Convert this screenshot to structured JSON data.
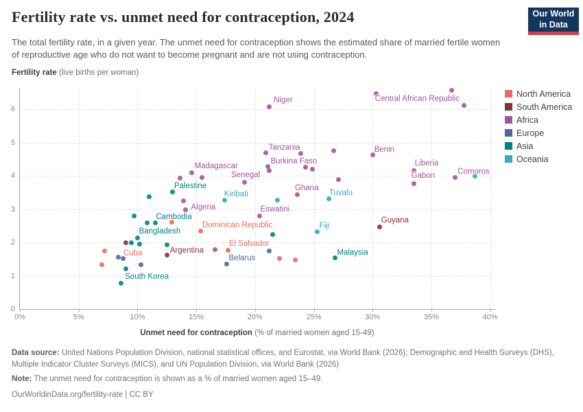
{
  "header": {
    "title": "Fertility rate vs. unmet need for contraception, 2024",
    "subtitle": "The total fertility rate, in a given year. The unmet need for contraception shows the estimated share of married fertile women of reproductive age who do not want to become pregnant and are not using contraception.",
    "logo_line1": "Our World",
    "logo_line2": "in Data",
    "logo_bg": "#15365c",
    "logo_red": "#cf3e4a"
  },
  "chart_data": {
    "type": "scatter",
    "title": "Fertility rate vs. unmet need for contraception, 2024",
    "xlabel_bold": "Unmet need for contraception",
    "xlabel_rest": " (% of married women aged 15-49)",
    "ylabel_bold": "Fertility rate",
    "ylabel_rest": " (live births per woman)",
    "xlim": [
      0,
      40
    ],
    "ylim": [
      0,
      6.6
    ],
    "grid": true,
    "legend_position": "right",
    "x_ticks": [
      0,
      5,
      10,
      15,
      20,
      25,
      30,
      35,
      40
    ],
    "x_tick_labels": [
      "0%",
      "5%",
      "10%",
      "15%",
      "20%",
      "25%",
      "30%",
      "35%",
      "40%"
    ],
    "y_ticks": [
      0,
      1,
      2,
      3,
      4,
      5,
      6
    ],
    "series": [
      {
        "name": "North America",
        "color": "#e56e5a",
        "points": [
          {
            "name": "Cuba",
            "x": 7.2,
            "y": 1.75,
            "lx": 9.6,
            "ly": 1.68
          },
          {
            "name": "Dominican Republic",
            "x": 15.4,
            "y": 2.33,
            "lx": 18.5,
            "ly": 2.52
          },
          {
            "name": "El Salvador",
            "x": 17.7,
            "y": 1.77,
            "lx": 19.5,
            "ly": 1.95
          },
          {
            "x": 12.9,
            "y": 2.6
          },
          {
            "x": 22.1,
            "y": 1.51
          },
          {
            "x": 23.4,
            "y": 1.48
          },
          {
            "x": 7.0,
            "y": 1.34
          }
        ]
      },
      {
        "name": "South America",
        "color": "#883039",
        "points": [
          {
            "name": "Argentina",
            "x": 12.5,
            "y": 1.61,
            "lx": 14.2,
            "ly": 1.76
          },
          {
            "name": "Guyana",
            "x": 30.6,
            "y": 2.47,
            "lx": 31.9,
            "ly": 2.65
          },
          {
            "x": 9.0,
            "y": 2.0
          }
        ]
      },
      {
        "name": "Africa",
        "color": "#a2559c",
        "points": [
          {
            "name": "Niger",
            "x": 21.2,
            "y": 6.08,
            "lx": 22.4,
            "ly": 6.26
          },
          {
            "name": "Central African Republic",
            "x": 30.3,
            "y": 6.47,
            "lx": 33.8,
            "ly": 6.3
          },
          {
            "name": "Tanzania",
            "x": 20.9,
            "y": 4.7,
            "lx": 22.5,
            "ly": 4.84
          },
          {
            "name": "Burkina Faso",
            "x": 24.3,
            "y": 4.25,
            "lx": 23.3,
            "ly": 4.44
          },
          {
            "name": "Senegal",
            "x": 19.1,
            "y": 3.81,
            "lx": 19.2,
            "ly": 4.03
          },
          {
            "name": "Madagascar",
            "x": 14.6,
            "y": 4.1,
            "lx": 16.7,
            "ly": 4.28
          },
          {
            "name": "Algeria",
            "x": 13.9,
            "y": 3.24,
            "lx": 15.6,
            "ly": 3.06
          },
          {
            "name": "Eswatini",
            "x": 20.4,
            "y": 2.8,
            "lx": 21.7,
            "ly": 2.98
          },
          {
            "name": "Ghana",
            "x": 23.6,
            "y": 3.44,
            "lx": 24.4,
            "ly": 3.62
          },
          {
            "name": "Benin",
            "x": 30.0,
            "y": 4.62,
            "lx": 31.0,
            "ly": 4.79
          },
          {
            "name": "Liberia",
            "x": 33.5,
            "y": 4.16,
            "lx": 34.6,
            "ly": 4.37
          },
          {
            "name": "Gabon",
            "x": 33.5,
            "y": 3.77,
            "lx": 34.3,
            "ly": 4.0
          },
          {
            "name": "Comoros",
            "x": 37.0,
            "y": 3.94,
            "lx": 38.6,
            "ly": 4.12
          },
          {
            "x": 36.7,
            "y": 6.56
          },
          {
            "x": 37.8,
            "y": 6.12
          },
          {
            "x": 26.7,
            "y": 4.76
          },
          {
            "x": 23.9,
            "y": 4.66
          },
          {
            "x": 21.1,
            "y": 4.27
          },
          {
            "x": 21.2,
            "y": 4.16
          },
          {
            "x": 24.9,
            "y": 4.19
          },
          {
            "x": 15.5,
            "y": 3.94
          },
          {
            "x": 13.6,
            "y": 3.92
          },
          {
            "x": 27.1,
            "y": 3.88
          },
          {
            "x": 14.1,
            "y": 2.97
          },
          {
            "x": 16.6,
            "y": 1.79
          }
        ]
      },
      {
        "name": "Europe",
        "color": "#4c6a9c",
        "points": [
          {
            "name": "Belarus",
            "x": 17.6,
            "y": 1.36,
            "lx": 18.9,
            "ly": 1.52
          },
          {
            "x": 21.2,
            "y": 1.75
          },
          {
            "x": 8.4,
            "y": 1.55
          },
          {
            "x": 8.8,
            "y": 1.51
          },
          {
            "x": 10.3,
            "y": 1.34
          }
        ]
      },
      {
        "name": "Asia",
        "color": "#00847e",
        "points": [
          {
            "name": "Palestine",
            "x": 13.0,
            "y": 3.52,
            "lx": 14.5,
            "ly": 3.7
          },
          {
            "name": "Cambodia",
            "x": 11.5,
            "y": 2.58,
            "lx": 13.1,
            "ly": 2.77
          },
          {
            "name": "Bangladesh",
            "x": 10.0,
            "y": 2.14,
            "lx": 11.9,
            "ly": 2.34
          },
          {
            "name": "South Korea",
            "x": 8.6,
            "y": 0.78,
            "lx": 10.8,
            "ly": 0.96
          },
          {
            "name": "Malaysia",
            "x": 26.8,
            "y": 1.53,
            "lx": 28.3,
            "ly": 1.69
          },
          {
            "x": 11.0,
            "y": 3.37
          },
          {
            "x": 9.7,
            "y": 2.8
          },
          {
            "x": 10.8,
            "y": 2.59
          },
          {
            "x": 21.5,
            "y": 2.24
          },
          {
            "x": 9.5,
            "y": 2.0
          },
          {
            "x": 10.2,
            "y": 1.94
          },
          {
            "x": 12.5,
            "y": 1.92
          },
          {
            "x": 9.0,
            "y": 1.2
          }
        ]
      },
      {
        "name": "Oceania",
        "color": "#38aaba",
        "points": [
          {
            "name": "Kiribati",
            "x": 17.4,
            "y": 3.26,
            "lx": 18.4,
            "ly": 3.45
          },
          {
            "name": "Tuvalu",
            "x": 26.3,
            "y": 3.3,
            "lx": 27.3,
            "ly": 3.48
          },
          {
            "name": "Fiji",
            "x": 25.3,
            "y": 2.31,
            "lx": 25.9,
            "ly": 2.5
          },
          {
            "x": 38.7,
            "y": 3.98
          },
          {
            "x": 21.9,
            "y": 3.26
          }
        ]
      }
    ]
  },
  "footer": {
    "datasource_label": "Data source:",
    "datasource": " United Nations Population Division, national statistical offices, and Eurostat, via World Bank (2026); Demographic and Health Surveys (DHS), Multiple Indicator Cluster Surveys (MICS), and UN Population Division, via World Bank (2026)",
    "note_label": "Note:",
    "note": " The unmet need for contraception is shown as a % of married women aged 15–49.",
    "license": "OurWorldinData.org/fertility-rate | CC BY"
  }
}
